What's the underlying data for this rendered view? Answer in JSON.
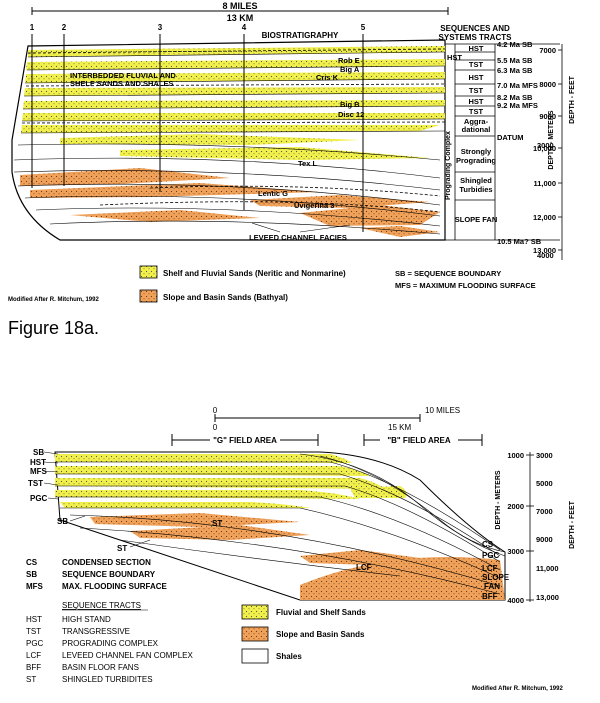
{
  "colors": {
    "yellow_sand": "#f2f04a",
    "orange_sand": "#f0a15a",
    "shale": "#ffffff",
    "ink": "#000000"
  },
  "fig_a": {
    "scale_miles": "8 MILES",
    "scale_km": "13 KM",
    "well_numbers": [
      "1",
      "2",
      "3",
      "4",
      "5"
    ],
    "biostrat_title": "BIOSTRATIGRAPHY",
    "header_sequences_1": "SEQUENCES AND",
    "header_sequences_2": "SYSTEMS TRACTS",
    "sb_labels": [
      "4.2 Ma SB",
      "5.5 Ma SB",
      "6.3 Ma SB",
      "7.0 Ma MFS",
      "8.2 Ma SB",
      "9.2 Ma MFS",
      "DATUM",
      "10.5 Ma? SB"
    ],
    "tracts": [
      "HST",
      "HST",
      "TST",
      "HST",
      "TST",
      "HST",
      "TST"
    ],
    "tract_aggr_1": "Aggra-",
    "tract_aggr_2": "dational",
    "tract_prog_1": "Strongly",
    "tract_prog_2": "Prograding",
    "tract_shing_1": "Shingled",
    "tract_shing_2": "Turbidies",
    "tract_slope": "SLOPE FAN",
    "complex_label": "Prograding Complex",
    "depth_m_label": "DEPTH - METERS",
    "depth_ft_label": "DEPTH - FEET",
    "depth_m_ticks": [
      "3000",
      "4000"
    ],
    "depth_ft_ticks": [
      "7000",
      "8000",
      "9000",
      "10,000",
      "11,000",
      "12,000",
      "13,000"
    ],
    "markers": [
      "Rob E",
      "Big A",
      "Cris K",
      "Big B",
      "Disc 12",
      "Tex L",
      "Lentic G",
      "Uvigerina 3"
    ],
    "interbedded_1": "INTERBEDDED FLUVIAL AND",
    "interbedded_2": "SHELF SANDS AND SHALES",
    "leveed": "LEVEED CHANNEL FACIES",
    "legend_yellow": "Shelf and Fluvial Sands (Neritic and Nonmarine)",
    "legend_orange": "Slope and Basin Sands (Bathyal)",
    "sb_def": "SB = SEQUENCE BOUNDARY",
    "mfs_def": "MFS = MAXIMUM FLOODING SURFACE",
    "credit": "Modified After R. Mitchum, 1992",
    "caption": "Figure 18a."
  },
  "fig_b": {
    "scale_miles_0": "0",
    "scale_miles_10": "10 MILES",
    "scale_km_0": "0",
    "scale_km_15": "15 KM",
    "g_field": "\"G\" FIELD AREA",
    "b_field": "\"B\" FIELD AREA",
    "left_labels": [
      "SB",
      "HST",
      "MFS",
      "TST",
      "PGC",
      "SB",
      "ST"
    ],
    "st_label": "ST",
    "lcf_label": "LCF",
    "right_labels": [
      "CS",
      "PGC",
      "LCF",
      "SLOPE",
      "FAN",
      "BFF"
    ],
    "depth_m_ticks": [
      "1000",
      "2000",
      "3000",
      "4000"
    ],
    "depth_ft_ticks": [
      "3000",
      "5000",
      "7000",
      "9000",
      "11,000",
      "13,000"
    ],
    "depth_m_label": "DEPTH - METERS",
    "depth_ft_label": "DEPTH - FEET",
    "abbrev": [
      {
        "code": "CS",
        "text": "CONDENSED SECTION"
      },
      {
        "code": "SB",
        "text": "SEQUENCE BOUNDARY"
      },
      {
        "code": "MFS",
        "text": "MAX. FLOODING SURFACE"
      }
    ],
    "tracts_title": "SEQUENCE TRACTS",
    "tracts": [
      {
        "code": "HST",
        "text": "HIGH STAND"
      },
      {
        "code": "TST",
        "text": "TRANSGRESSIVE"
      },
      {
        "code": "PGC",
        "text": "PROGRADING COMPLEX"
      },
      {
        "code": "LCF",
        "text": "LEVEED CHANNEL FAN COMPLEX"
      },
      {
        "code": "BFF",
        "text": "BASIN FLOOR FANS"
      },
      {
        "code": "ST",
        "text": "SHINGLED TURBIDITES"
      }
    ],
    "legend_yellow": "Fluvial and Shelf Sands",
    "legend_orange": "Slope and Basin Sands",
    "legend_white": "Shales",
    "credit": "Modified After R. Mitchum, 1992"
  }
}
